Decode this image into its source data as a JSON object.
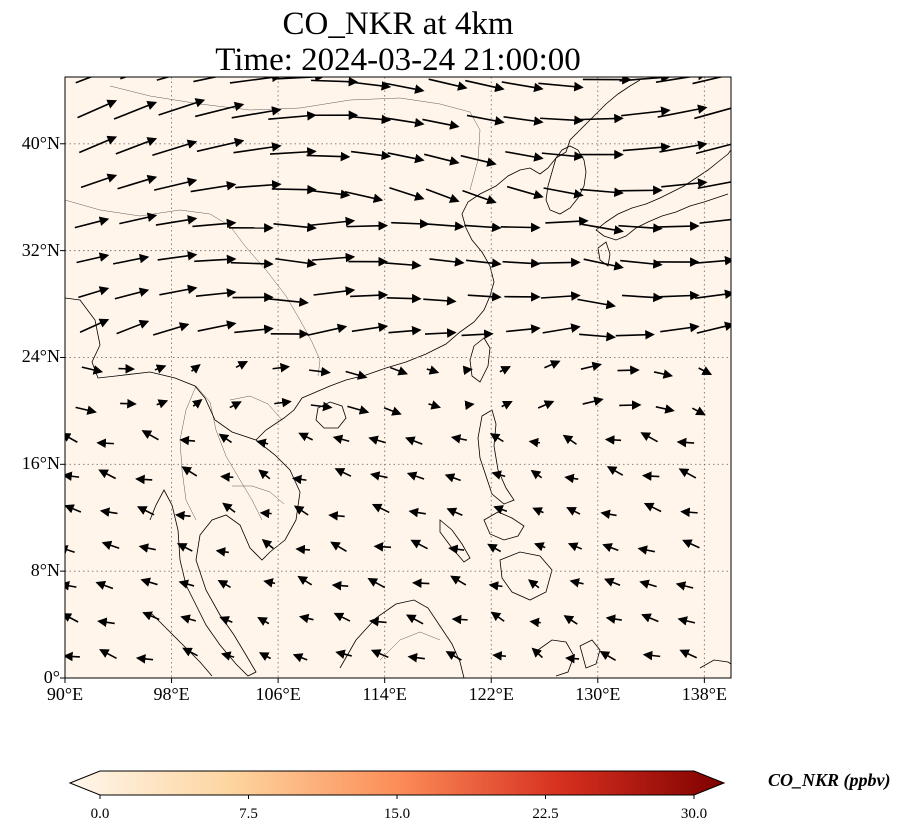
{
  "map": {
    "title_line1": "CO_NKR at 4km",
    "title_line2": "Time: 2024-03-24 21:00:00",
    "projection": "PlateCarree",
    "extent": {
      "lon": [
        90,
        140
      ],
      "lat": [
        0,
        45
      ]
    },
    "lat_ticks": [
      "0°",
      "8°N",
      "16°N",
      "24°N",
      "32°N",
      "40°N"
    ],
    "lon_ticks": [
      "90°E",
      "98°E",
      "106°E",
      "114°E",
      "122°E",
      "130°E",
      "138°E"
    ],
    "gridlines": "dotted",
    "field_fill_color": "#fff5ea",
    "wind_vectors": "prevailing westerly flow north of 24°N, weak easterlies south"
  },
  "colorbar": {
    "label": "CO_NKR (ppbv)",
    "ticks": [
      "0.0",
      "7.5",
      "15.0",
      "22.5",
      "30.0"
    ],
    "min": 0,
    "max": 30,
    "extend": "both",
    "colormap": "OrRd",
    "colors": [
      "#fff7ec",
      "#fdd49e",
      "#fc8d59",
      "#d7301f",
      "#7f0000"
    ]
  }
}
